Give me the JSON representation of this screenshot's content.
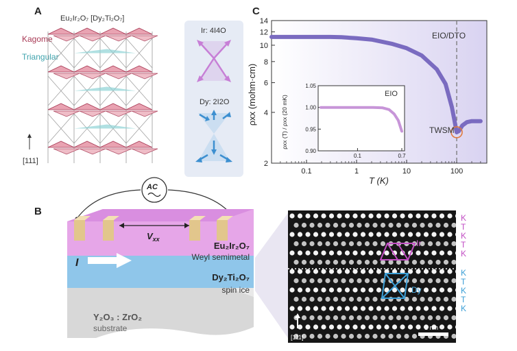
{
  "panels": {
    "A": {
      "label": "A",
      "title": "Eu₂Ir₂O₇ [Dy₂Ti₂O₇]",
      "kagome": "Kagome",
      "triangular": "Triangular",
      "direction": "[111]",
      "ir_config": "Ir: 4I4O",
      "dy_config": "Dy: 2I2O"
    },
    "B": {
      "label": "B",
      "source": "AC",
      "voltage": "V",
      "voltage_sub": "xx",
      "current": "I",
      "layer1": "Eu₂Ir₂O₇",
      "layer1_desc": "Weyl semimetal",
      "layer2": "Dy₂Ti₂O₇",
      "layer2_desc": "spin ice",
      "substrate": "Y₂O₃ : ZrO₂",
      "substrate_desc": "substrate",
      "ir_label": "Ir",
      "dy_label": "Dy",
      "scale_bar": "1 nm",
      "stem_direction": "[111]",
      "stacking_ir": [
        "K",
        "T",
        "K",
        "T",
        "K"
      ],
      "stacking_dy": [
        "K",
        "T",
        "K",
        "T",
        "K"
      ],
      "colors": {
        "ir": "#c24fc4",
        "dy": "#3c9fd6",
        "weyl": "#e6a6e8",
        "spinice": "#8fc6ea"
      }
    },
    "C": {
      "label": "C",
      "xlabel": "T (K)",
      "ylabel": "ρxx (mohm·cm)",
      "legend": "EIO/DTO",
      "twsm": "TWSM",
      "inset_legend": "EIO",
      "inset_ylabel": "ρxx (T) / ρxx (20 mK)"
    }
  },
  "chart_data": {
    "type": "line",
    "xscale": "log",
    "yscale": "log",
    "xlabel": "T (K)",
    "ylabel": "ρxx (mohm·cm)",
    "xlim": [
      0.02,
      400
    ],
    "ylim": [
      2,
      14
    ],
    "xticks": [
      0.1,
      1,
      10,
      100
    ],
    "xtick_labels": [
      "0.1",
      "1",
      "10",
      "100"
    ],
    "yticks": [
      2,
      4,
      6,
      8,
      10,
      12,
      14
    ],
    "ytick_labels": [
      "2",
      "4",
      "6",
      "8",
      "10",
      "12",
      "14"
    ],
    "vline_x": 100,
    "series": [
      {
        "name": "EIO/DTO",
        "color": "#7a6bc0",
        "x": [
          0.02,
          0.05,
          0.1,
          0.3,
          0.5,
          1,
          2,
          5,
          10,
          20,
          40,
          60,
          80,
          90,
          95,
          100,
          110,
          130,
          160,
          200,
          250,
          300
        ],
        "y": [
          11.2,
          11.2,
          11.2,
          11.2,
          11.15,
          11.0,
          10.8,
          10.2,
          9.6,
          8.7,
          7.2,
          5.9,
          4.3,
          3.6,
          3.3,
          3.05,
          3.1,
          3.35,
          3.5,
          3.55,
          3.55,
          3.55
        ]
      }
    ],
    "inset": {
      "legend": "EIO",
      "color": "#c795d8",
      "xlim": [
        0.02,
        0.7
      ],
      "ylim": [
        0.9,
        1.05
      ],
      "xticks": [
        0.1,
        0.7
      ],
      "xtick_labels": [
        "0.1",
        "0.7"
      ],
      "yticks": [
        0.9,
        0.95,
        1.0,
        1.05
      ],
      "ytick_labels": [
        "0.90",
        "0.95",
        "1.00",
        "1.05"
      ],
      "x": [
        0.02,
        0.05,
        0.1,
        0.2,
        0.3,
        0.4,
        0.5,
        0.6,
        0.7
      ],
      "y": [
        1.0,
        1.0,
        1.0,
        1.0,
        0.999,
        0.995,
        0.985,
        0.97,
        0.945
      ]
    }
  }
}
